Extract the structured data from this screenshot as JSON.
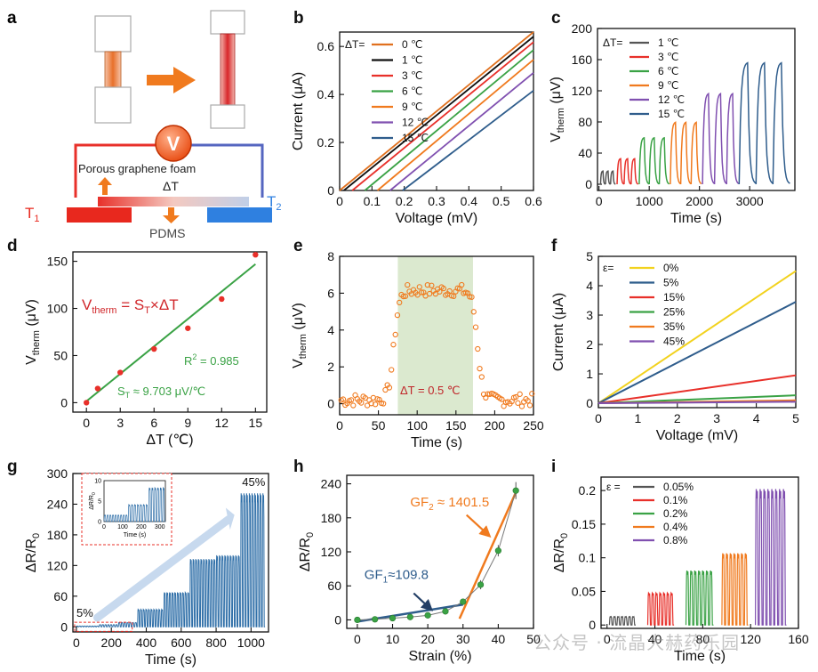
{
  "colors": {
    "black": "#111111",
    "red": "#e8302a",
    "orange": "#f07a1e",
    "green": "#3aa245",
    "blue": "#2f5d8c",
    "purple": "#8050b0",
    "yellow": "#f2d21e",
    "gray": "#555555",
    "shade": "#dbe9cf"
  },
  "watermark": "公众号 · 流晶大赫药乐园",
  "panel_a": {
    "letter": "a",
    "voltmeter": "V",
    "foam_label": "Porous graphene foam",
    "delta_t": "ΔT",
    "t1": "T",
    "t1_sub": "1",
    "t2": "T",
    "t2_sub": "2",
    "pdms": "PDMS"
  },
  "chart_data": [
    {
      "id": "b",
      "letter": "b",
      "type": "line",
      "xlabel": "Voltage (mV)",
      "ylabel": "Current (μA)",
      "xlim": [
        0,
        0.6
      ],
      "ylim": [
        0,
        0.66
      ],
      "xticks": [
        0,
        0.1,
        0.2,
        0.3,
        0.4,
        0.5,
        0.6
      ],
      "xtick_labels": [
        "0",
        "0.1",
        "0.2",
        "0.3",
        "0.4",
        "0.5",
        "0.6"
      ],
      "yticks": [
        0,
        0.2,
        0.4,
        0.6
      ],
      "ytick_labels": [
        "0",
        "0.2",
        "0.4",
        "0.6"
      ],
      "legend_title": "ΔT=",
      "legend_position": "top-left",
      "series": [
        {
          "name": "0 ℃",
          "color": "#e0701e",
          "x": [
            0,
            0.6
          ],
          "y": [
            0,
            0.66
          ]
        },
        {
          "name": "1 ℃",
          "color": "#111111",
          "x": [
            0.013,
            0.6
          ],
          "y": [
            0,
            0.641
          ]
        },
        {
          "name": "3 ℃",
          "color": "#e8302a",
          "x": [
            0.039,
            0.6
          ],
          "y": [
            0,
            0.618
          ]
        },
        {
          "name": "6 ℃",
          "color": "#3aa245",
          "x": [
            0.078,
            0.6
          ],
          "y": [
            0,
            0.585
          ]
        },
        {
          "name": "9 ℃",
          "color": "#f07a1e",
          "x": [
            0.117,
            0.6
          ],
          "y": [
            0,
            0.545
          ]
        },
        {
          "name": "12 ℃",
          "color": "#8050b0",
          "x": [
            0.156,
            0.6
          ],
          "y": [
            0,
            0.49
          ]
        },
        {
          "name": "15 ℃",
          "color": "#2f5d8c",
          "x": [
            0.195,
            0.6
          ],
          "y": [
            0,
            0.416
          ]
        }
      ]
    },
    {
      "id": "c",
      "letter": "c",
      "type": "line",
      "xlabel": "Time (s)",
      "ylabel": "V",
      "ylabel_sub": "therm",
      "ylabel_unit": " (μV)",
      "xlim": [
        -30,
        3900
      ],
      "ylim": [
        -8,
        200
      ],
      "xticks": [
        0,
        1000,
        2000,
        3000
      ],
      "xtick_labels": [
        "0",
        "1000",
        "2000",
        "3000"
      ],
      "yticks": [
        0,
        40,
        80,
        120,
        160,
        200
      ],
      "ytick_labels": [
        "0",
        "40",
        "80",
        "120",
        "160",
        "200"
      ],
      "legend_title": "ΔT=",
      "legend_position": "top-left",
      "series": [
        {
          "name": "1 ℃",
          "color": "#555555",
          "pulses": 3,
          "peak": 17,
          "t_start": 30,
          "t_end": 330
        },
        {
          "name": "3 ℃",
          "color": "#e8302a",
          "pulses": 3,
          "peak": 33,
          "t_start": 360,
          "t_end": 780
        },
        {
          "name": "6 ℃",
          "color": "#3aa245",
          "pulses": 3,
          "peak": 60,
          "t_start": 800,
          "t_end": 1400
        },
        {
          "name": "9 ℃",
          "color": "#f07a1e",
          "pulses": 3,
          "peak": 80,
          "t_start": 1420,
          "t_end": 2040
        },
        {
          "name": "12 ℃",
          "color": "#8050b0",
          "pulses": 3,
          "peak": 117,
          "t_start": 2060,
          "t_end": 2780
        },
        {
          "name": "15 ℃",
          "color": "#2f5d8c",
          "pulses": 3,
          "peak": 157,
          "t_start": 2790,
          "t_end": 3800
        }
      ]
    },
    {
      "id": "d",
      "letter": "d",
      "type": "scatter",
      "xlabel": "ΔT (℃)",
      "ylabel": "V",
      "ylabel_sub": "therm",
      "ylabel_unit": " (μV)",
      "xlim": [
        -1.2,
        16
      ],
      "ylim": [
        -10,
        160
      ],
      "xticks": [
        0,
        3,
        6,
        9,
        12,
        15
      ],
      "xtick_labels": [
        "0",
        "3",
        "6",
        "9",
        "12",
        "15"
      ],
      "yticks": [
        0,
        50,
        100,
        150
      ],
      "ytick_labels": [
        "0",
        "50",
        "100",
        "150"
      ],
      "x": [
        0,
        1,
        3,
        6,
        9,
        12,
        15
      ],
      "y": [
        0,
        15,
        32,
        57,
        79,
        110,
        157
      ],
      "marker_color": "#e8302a",
      "fit": {
        "color": "#3aa245",
        "x": [
          0,
          15
        ],
        "y": [
          1.5,
          147
        ]
      },
      "annotations": {
        "equation": "V",
        "equation_sub": "therm",
        "equation_rest": " = S",
        "equation_sub2": "T",
        "equation_tail": "×ΔT",
        "r2": "R",
        "r2_sup": "2",
        "r2_rest": " = 0.985",
        "st": "S",
        "st_sub": "T",
        "st_rest": " ≈ 9.703 μV/℃"
      }
    },
    {
      "id": "e",
      "letter": "e",
      "type": "scatter",
      "xlabel": "Time (s)",
      "ylabel": "V",
      "ylabel_sub": "therm",
      "ylabel_unit": " (μV)",
      "xlim": [
        0,
        250
      ],
      "ylim": [
        -0.6,
        8
      ],
      "xticks": [
        0,
        50,
        100,
        150,
        200,
        250
      ],
      "xtick_labels": [
        "0",
        "50",
        "100",
        "150",
        "200",
        "250"
      ],
      "yticks": [
        0,
        2,
        4,
        6,
        8
      ],
      "ytick_labels": [
        "0",
        "2",
        "4",
        "6",
        "8"
      ],
      "shaded_x": [
        75,
        172
      ],
      "marker_color": "#f07a1e",
      "annotation": "ΔT = 0.5 ℃",
      "n_points": 96,
      "plateau": 6.15,
      "baseline": 0.2,
      "rise_center": 70,
      "fall_center": 178
    },
    {
      "id": "f",
      "letter": "f",
      "type": "line",
      "xlabel": "Voltage (mV)",
      "ylabel": "Current (μA)",
      "xlim": [
        0,
        5
      ],
      "ylim": [
        -0.15,
        5
      ],
      "xticks": [
        0,
        1,
        2,
        3,
        4,
        5
      ],
      "xtick_labels": [
        "0",
        "1",
        "2",
        "3",
        "4",
        "5"
      ],
      "yticks": [
        0,
        1,
        2,
        3,
        4,
        5
      ],
      "ytick_labels": [
        "0",
        "1",
        "2",
        "3",
        "4",
        "5"
      ],
      "legend_title": "ε=",
      "legend_position": "top-left",
      "series": [
        {
          "name": "0%",
          "color": "#f2d21e",
          "x": [
            0,
            5
          ],
          "y": [
            0,
            4.5
          ]
        },
        {
          "name": "5%",
          "color": "#2f5d8c",
          "x": [
            0,
            5
          ],
          "y": [
            0,
            3.45
          ]
        },
        {
          "name": "15%",
          "color": "#e8302a",
          "x": [
            0,
            5
          ],
          "y": [
            0,
            0.95
          ]
        },
        {
          "name": "25%",
          "color": "#3aa245",
          "x": [
            0,
            5
          ],
          "y": [
            0,
            0.27
          ]
        },
        {
          "name": "35%",
          "color": "#f07a1e",
          "x": [
            0,
            5
          ],
          "y": [
            0,
            0.1
          ]
        },
        {
          "name": "45%",
          "color": "#8050b0",
          "x": [
            0,
            5
          ],
          "y": [
            0,
            0.05
          ]
        }
      ]
    },
    {
      "id": "g",
      "letter": "g",
      "type": "line",
      "xlabel": "Time (s)",
      "ylabel": "ΔR/R",
      "ylabel_sub": "0",
      "xlim": [
        -20,
        1100
      ],
      "ylim": [
        -10,
        300
      ],
      "xticks": [
        0,
        200,
        400,
        600,
        800,
        1000
      ],
      "xtick_labels": [
        "0",
        "200",
        "400",
        "600",
        "800",
        "1000"
      ],
      "yticks": [
        0,
        60,
        120,
        180,
        240,
        300
      ],
      "ytick_labels": [
        "0",
        "60",
        "120",
        "180",
        "240",
        "300"
      ],
      "color": "#2f6fa8",
      "groups": [
        {
          "t_start": 0,
          "t_end": 130,
          "peak": 1.5
        },
        {
          "t_start": 130,
          "t_end": 240,
          "peak": 4
        },
        {
          "t_start": 240,
          "t_end": 350,
          "peak": 8
        },
        {
          "t_start": 350,
          "t_end": 500,
          "peak": 33
        },
        {
          "t_start": 500,
          "t_end": 650,
          "peak": 65
        },
        {
          "t_start": 650,
          "t_end": 800,
          "peak": 128
        },
        {
          "t_start": 800,
          "t_end": 940,
          "peak": 135
        },
        {
          "t_start": 940,
          "t_end": 1080,
          "peak": 252
        }
      ],
      "label_low": "5%",
      "label_high": "45%",
      "inset": {
        "ylabel": "ΔR/R",
        "ylabel_sub": "0",
        "xlabel": "Time (s)",
        "xlim": [
          0,
          330
        ],
        "ylim": [
          0,
          10
        ],
        "xticks": [
          0,
          100,
          200,
          300
        ],
        "xtick_labels": [
          "0",
          "100",
          "200",
          "300"
        ],
        "yticks": [
          0,
          5,
          10
        ],
        "ytick_labels": [
          "0",
          "5",
          "10"
        ],
        "groups": [
          {
            "t_start": 0,
            "t_end": 130,
            "peak": 1.5
          },
          {
            "t_start": 130,
            "t_end": 240,
            "peak": 4
          },
          {
            "t_start": 240,
            "t_end": 330,
            "peak": 8
          }
        ]
      }
    },
    {
      "id": "h",
      "letter": "h",
      "type": "scatter",
      "xlabel": "Strain (%)",
      "ylabel": "ΔR/R",
      "ylabel_sub": "0",
      "xlim": [
        -3,
        50
      ],
      "ylim": [
        -15,
        255
      ],
      "xticks": [
        0,
        10,
        20,
        30,
        40,
        50
      ],
      "xtick_labels": [
        "0",
        "10",
        "20",
        "30",
        "40",
        "50"
      ],
      "yticks": [
        0,
        60,
        120,
        180,
        240
      ],
      "ytick_labels": [
        "0",
        "60",
        "120",
        "180",
        "240"
      ],
      "x": [
        0,
        5,
        10,
        15,
        20,
        25,
        30,
        35,
        40,
        45
      ],
      "y": [
        0,
        1,
        3,
        5,
        8,
        15,
        32,
        62,
        122,
        228
      ],
      "err": [
        3,
        3,
        3,
        3,
        3,
        4,
        5,
        8,
        10,
        15
      ],
      "marker_color": "#3aa245",
      "fit1": {
        "color": "#2f5d8c",
        "x": [
          0,
          30
        ],
        "y": [
          -3,
          27
        ]
      },
      "fit2": {
        "color": "#f07a1e",
        "x": [
          29,
          45
        ],
        "y": [
          2,
          225
        ]
      },
      "gf1": "GF",
      "gf1_sub": "1",
      "gf1_rest": "≈109.8",
      "gf2": "GF",
      "gf2_sub": "2",
      "gf2_rest": " ≈ 1401.5"
    },
    {
      "id": "i",
      "letter": "i",
      "type": "line",
      "xlabel": "Time (s)",
      "ylabel": "ΔR/R",
      "ylabel_sub": "0",
      "xlim": [
        -5,
        160
      ],
      "ylim": [
        -0.005,
        0.22
      ],
      "xticks": [
        0,
        40,
        80,
        120,
        160
      ],
      "xtick_labels": [
        "0",
        "40",
        "80",
        "120",
        "160"
      ],
      "yticks": [
        0,
        0.05,
        0.1,
        0.15,
        0.2
      ],
      "ytick_labels": [
        "0",
        "0.05",
        "0.1",
        "0.15",
        "0.2"
      ],
      "legend_title": "ε =",
      "legend_position": "top-left",
      "series": [
        {
          "name": "0.05%",
          "color": "#555555",
          "pulses": 7,
          "peak": 0.012,
          "t_start": 2,
          "t_end": 24
        },
        {
          "name": "0.1%",
          "color": "#e8302a",
          "pulses": 7,
          "peak": 0.046,
          "t_start": 34,
          "t_end": 56
        },
        {
          "name": "0.2%",
          "color": "#3aa245",
          "pulses": 7,
          "peak": 0.078,
          "t_start": 66,
          "t_end": 89
        },
        {
          "name": "0.4%",
          "color": "#f07a1e",
          "pulses": 7,
          "peak": 0.103,
          "t_start": 96,
          "t_end": 118
        },
        {
          "name": "0.8%",
          "color": "#8050b0",
          "pulses": 8,
          "peak": 0.195,
          "t_start": 124,
          "t_end": 150
        }
      ]
    }
  ]
}
